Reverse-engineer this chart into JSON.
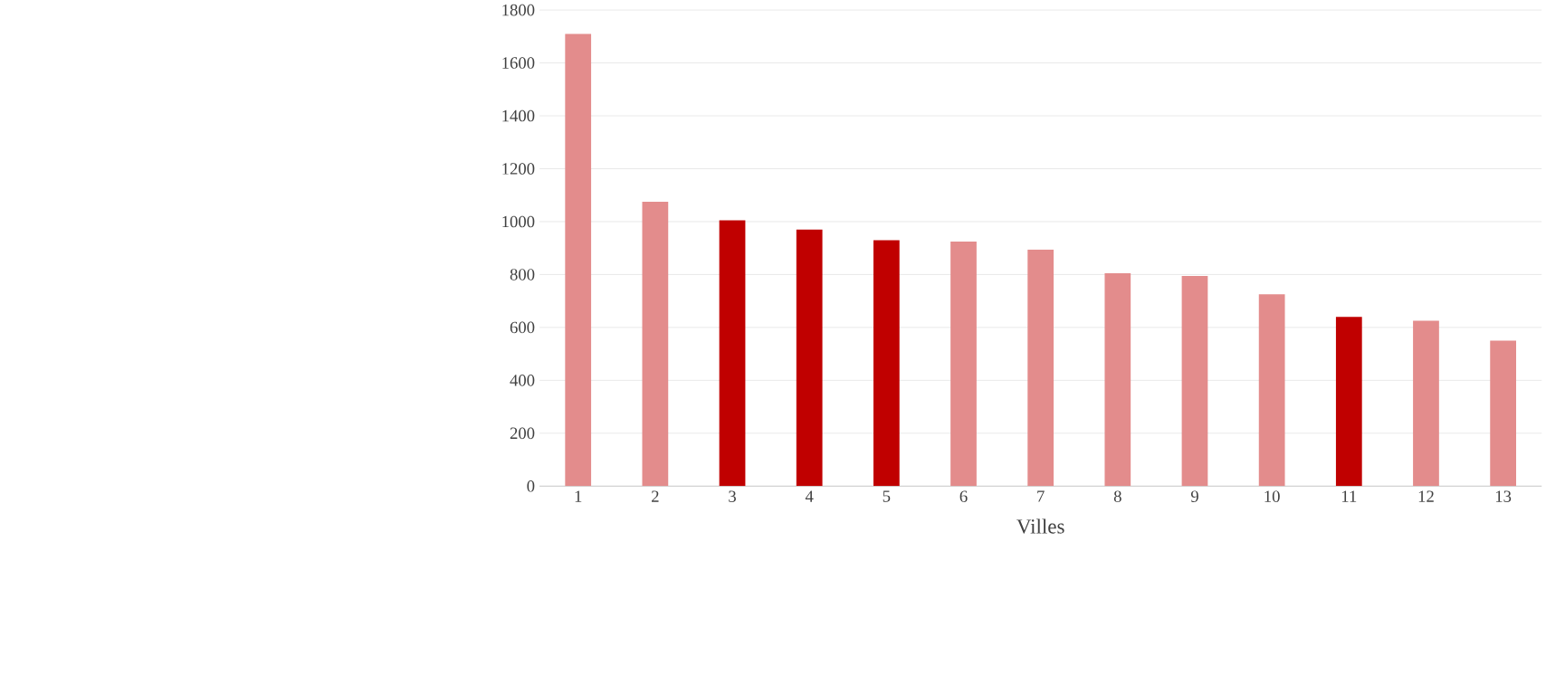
{
  "chart_data": {
    "type": "bar",
    "xlabel": "Villes",
    "categories": [
      "1",
      "2",
      "3",
      "4",
      "5",
      "6",
      "7",
      "8",
      "9",
      "10",
      "11",
      "12",
      "13"
    ],
    "values": [
      1710,
      1075,
      1005,
      970,
      930,
      925,
      895,
      805,
      795,
      725,
      640,
      625,
      550
    ],
    "colors": [
      "#e38c8c",
      "#e38c8c",
      "#c00000",
      "#c00000",
      "#c00000",
      "#e38c8c",
      "#e38c8c",
      "#e38c8c",
      "#e38c8c",
      "#e38c8c",
      "#c00000",
      "#e38c8c",
      "#e38c8c"
    ],
    "ylim": [
      0,
      1800
    ],
    "yticks": [
      0,
      200,
      400,
      600,
      800,
      1000,
      1200,
      1400,
      1600,
      1800
    ],
    "grid": "y"
  }
}
